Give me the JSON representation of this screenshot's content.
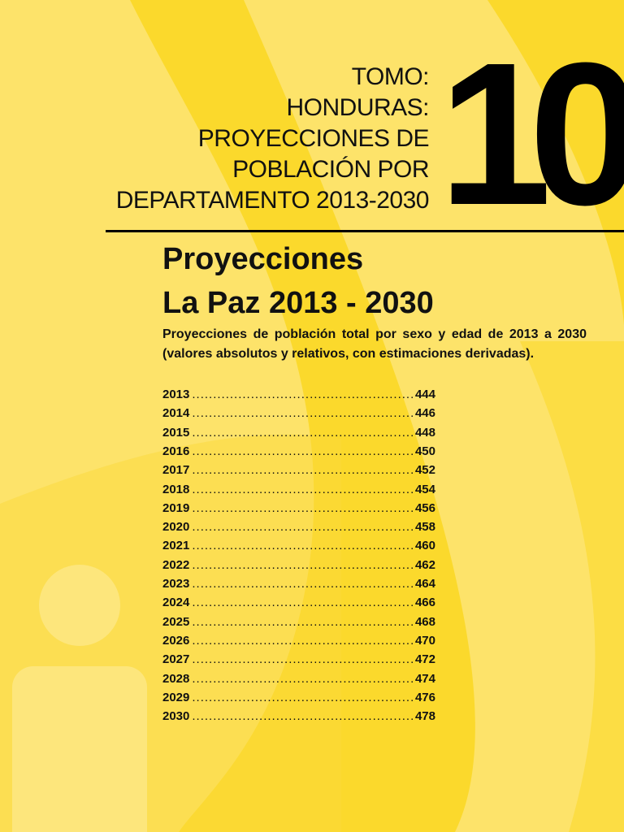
{
  "header": {
    "lines": [
      "TOMO:",
      "HONDURAS:",
      "PROYECCIONES DE",
      "POBLACIÓN POR",
      "DEPARTAMENTO 2013-2030"
    ],
    "number": "10"
  },
  "title": {
    "lines": [
      "Proyecciones",
      "La Paz 2013 - 2030"
    ]
  },
  "subtitle": "Proyecciones de población total por sexo y edad de 2013 a 2030 (valores absolutos y relativos, con estimaciones derivadas).",
  "toc": [
    [
      "2013",
      "444"
    ],
    [
      "2014",
      "446"
    ],
    [
      "2015",
      "448"
    ],
    [
      "2016",
      "450"
    ],
    [
      "2017",
      "452"
    ],
    [
      "2018",
      "454"
    ],
    [
      "2019",
      "456"
    ],
    [
      "2020",
      "458"
    ],
    [
      "2021",
      "460"
    ],
    [
      "2022",
      "462"
    ],
    [
      "2023",
      "464"
    ],
    [
      "2024",
      "466"
    ],
    [
      "2025",
      "468"
    ],
    [
      "2026",
      "470"
    ],
    [
      "2027",
      "472"
    ],
    [
      "2028",
      "474"
    ],
    [
      "2029",
      "476"
    ],
    [
      "2030",
      "478"
    ]
  ]
}
